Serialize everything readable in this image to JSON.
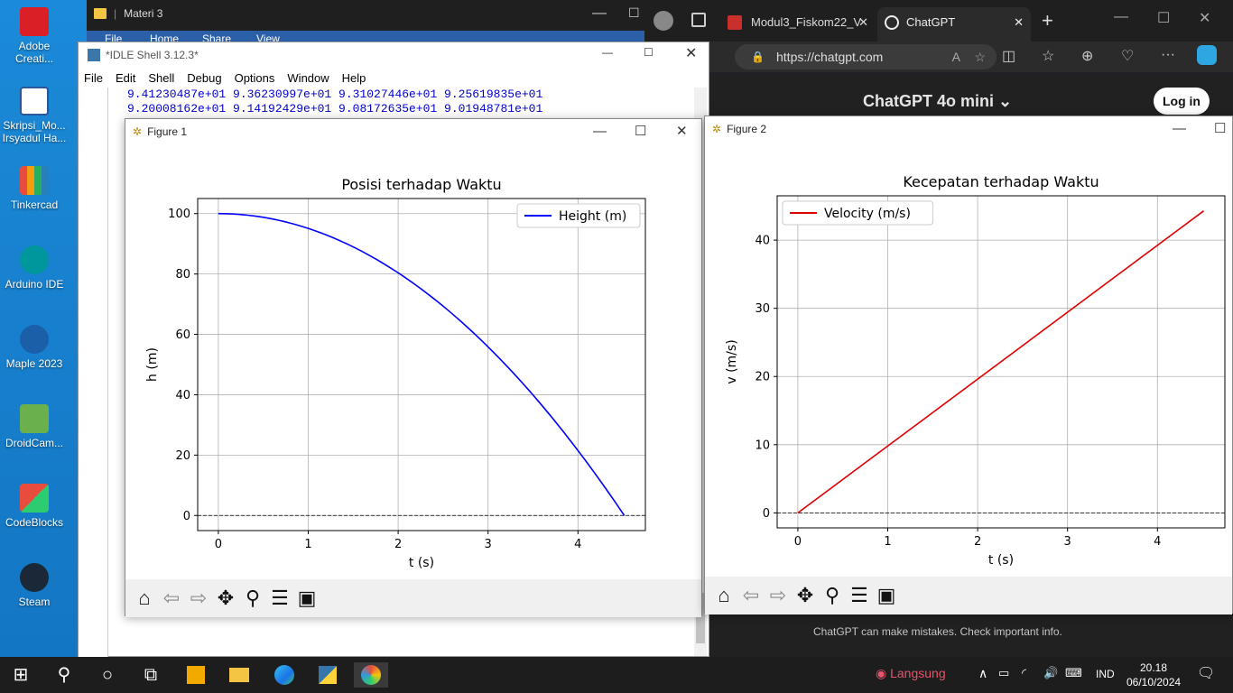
{
  "desktop_icons": [
    {
      "label": "Adobe Creati...",
      "icon": "adobe-icon"
    },
    {
      "label": "Skripsi_Mo... Irsyadul Ha...",
      "icon": "word-icon"
    },
    {
      "label": "Tinkercad",
      "icon": "tinkercad-icon"
    },
    {
      "label": "Arduino IDE",
      "icon": "arduino-icon"
    },
    {
      "label": "Maple 2023",
      "icon": "maple-icon"
    },
    {
      "label": "DroidCam...",
      "icon": "droidcam-icon"
    },
    {
      "label": "CodeBlocks",
      "icon": "codeblocks-icon"
    },
    {
      "label": "Steam",
      "icon": "steam-icon"
    }
  ],
  "explorer": {
    "title": "Materi 3",
    "menu": [
      "File",
      "Home",
      "Share",
      "View"
    ]
  },
  "idle": {
    "title": "*IDLE Shell 3.12.3*",
    "menu": [
      "File",
      "Edit",
      "Shell",
      "Debug",
      "Options",
      "Window",
      "Help"
    ],
    "lines": [
      "9.41230487e+01  9.36230997e+01  9.31027446e+01  9.25619835e+01",
      "9.20008162e+01  9.14192429e+01  9.08172635e+01  9.01948781e+01"
    ]
  },
  "edge": {
    "tabs": [
      "Modul3_Fiskom22_V",
      "ChatGPT"
    ],
    "url": "https://chatgpt.com",
    "model": "ChatGPT 4o mini",
    "login": "Log in",
    "disclaimer": "ChatGPT can make mistakes. Check important info."
  },
  "figure1": {
    "title": "Figure 1"
  },
  "figure2": {
    "title": "Figure 2"
  },
  "chart_data": [
    {
      "type": "line",
      "title": "Posisi terhadap Waktu",
      "xlabel": "t (s)",
      "ylabel": "h (m)",
      "xlim": [
        -0.23,
        4.75
      ],
      "ylim": [
        -5,
        105
      ],
      "xticks": [
        0,
        1,
        2,
        3,
        4
      ],
      "yticks": [
        0,
        20,
        40,
        60,
        80,
        100
      ],
      "grid": true,
      "legend": "top-right",
      "series": [
        {
          "name": "Height (m)",
          "color": "#0000ff",
          "formula": "h = 100 - 4.905 t^2",
          "x": [
            0,
            0.5,
            1,
            1.5,
            2,
            2.5,
            3,
            3.5,
            4,
            4.5,
            4.515
          ],
          "y": [
            100,
            98.77,
            95.1,
            88.96,
            80.38,
            69.34,
            55.86,
            39.91,
            21.52,
            0.67,
            0
          ]
        }
      ],
      "hline": 0
    },
    {
      "type": "line",
      "title": "Kecepatan terhadap Waktu",
      "xlabel": "t (s)",
      "ylabel": "v (m/s)",
      "xlim": [
        -0.23,
        4.75
      ],
      "ylim": [
        -2.2,
        46.5
      ],
      "xticks": [
        0,
        1,
        2,
        3,
        4
      ],
      "yticks": [
        0,
        10,
        20,
        30,
        40
      ],
      "grid": true,
      "legend": "top-left",
      "series": [
        {
          "name": "Velocity (m/s)",
          "color": "#e00000",
          "x": [
            0,
            4.515
          ],
          "y": [
            0,
            44.29
          ]
        }
      ],
      "hline": 0
    }
  ],
  "taskbar": {
    "language": "IND",
    "time": "20.18",
    "date": "06/10/2024",
    "live": "Langsung"
  }
}
